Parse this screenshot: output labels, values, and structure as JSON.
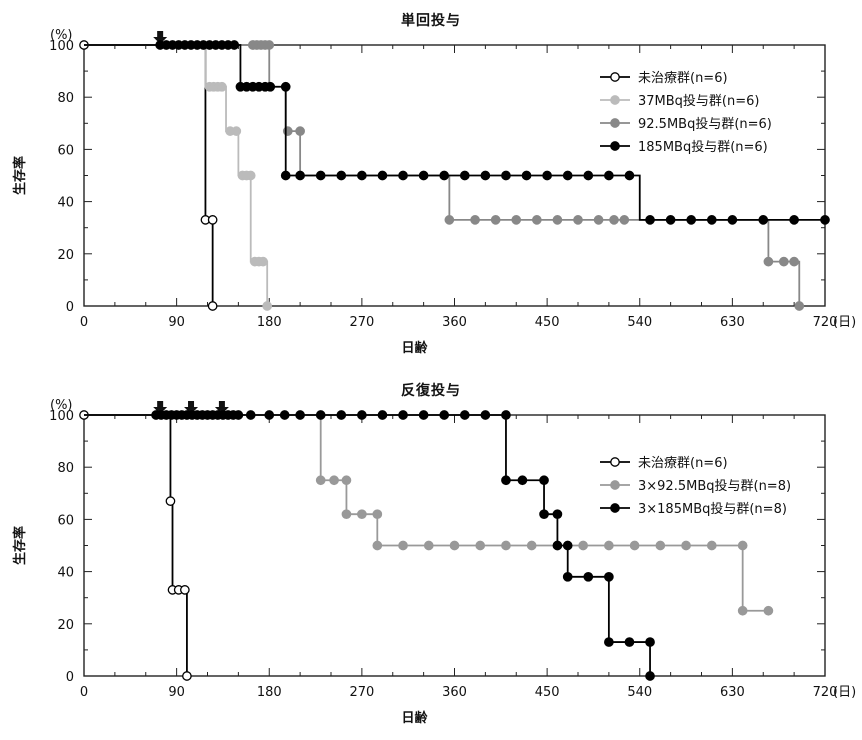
{
  "chart_data": [
    {
      "type": "line",
      "title": "単回投与",
      "xlabel": "日齢",
      "ylabel": "生存率",
      "y_unit": "(%)",
      "x_unit": "(日)",
      "xlim": [
        0,
        720
      ],
      "ylim": [
        0,
        100
      ],
      "x_ticks": [
        0,
        90,
        180,
        270,
        360,
        450,
        540,
        630,
        720
      ],
      "y_ticks": [
        0,
        20,
        40,
        60,
        80,
        100
      ],
      "dosing_arrows_x": [
        74
      ],
      "legend_position": "top-right",
      "series": [
        {
          "name": "未治療群(n=6)",
          "color": "#000000",
          "marker": "open",
          "steps": [
            [
              0,
              100
            ],
            [
              118,
              100
            ],
            [
              118,
              33
            ],
            [
              125,
              33
            ],
            [
              125,
              0
            ]
          ],
          "markers": [
            [
              0,
              100
            ],
            [
              118,
              33
            ],
            [
              125,
              33
            ],
            [
              125,
              0
            ]
          ]
        },
        {
          "name": "37MBq投与群(n=6)",
          "color": "#bbbbbb",
          "marker": "filled",
          "steps": [
            [
              0,
              100
            ],
            [
              118,
              100
            ],
            [
              118,
              84
            ],
            [
              138,
              84
            ],
            [
              138,
              67
            ],
            [
              150,
              67
            ],
            [
              150,
              50
            ],
            [
              162,
              50
            ],
            [
              162,
              17
            ],
            [
              178,
              17
            ],
            [
              178,
              0
            ]
          ],
          "markers": [
            [
              122,
              84
            ],
            [
              126,
              84
            ],
            [
              130,
              84
            ],
            [
              134,
              84
            ],
            [
              142,
              67
            ],
            [
              148,
              67
            ],
            [
              154,
              50
            ],
            [
              158,
              50
            ],
            [
              162,
              50
            ],
            [
              166,
              17
            ],
            [
              170,
              17
            ],
            [
              174,
              17
            ],
            [
              178,
              0
            ]
          ]
        },
        {
          "name": "92.5MBq投与群(n=6)",
          "color": "#888888",
          "marker": "filled",
          "steps": [
            [
              0,
              100
            ],
            [
              180,
              100
            ],
            [
              180,
              84
            ],
            [
              196,
              84
            ],
            [
              196,
              67
            ],
            [
              210,
              67
            ],
            [
              210,
              50
            ],
            [
              355,
              50
            ],
            [
              355,
              33
            ],
            [
              665,
              33
            ],
            [
              665,
              17
            ],
            [
              695,
              17
            ],
            [
              695,
              0
            ]
          ],
          "markers": [
            [
              164,
              100
            ],
            [
              168,
              100
            ],
            [
              172,
              100
            ],
            [
              176,
              100
            ],
            [
              180,
              100
            ],
            [
              198,
              67
            ],
            [
              210,
              67
            ],
            [
              355,
              33
            ],
            [
              380,
              33
            ],
            [
              400,
              33
            ],
            [
              420,
              33
            ],
            [
              440,
              33
            ],
            [
              460,
              33
            ],
            [
              480,
              33
            ],
            [
              500,
              33
            ],
            [
              515,
              33
            ],
            [
              525,
              33
            ],
            [
              665,
              17
            ],
            [
              680,
              17
            ],
            [
              690,
              17
            ],
            [
              695,
              0
            ]
          ]
        },
        {
          "name": "185MBq投与群(n=6)",
          "color": "#000000",
          "marker": "filled",
          "steps": [
            [
              0,
              100
            ],
            [
              152,
              100
            ],
            [
              152,
              84
            ],
            [
              196,
              84
            ],
            [
              196,
              50
            ],
            [
              540,
              50
            ],
            [
              540,
              33
            ],
            [
              720,
              33
            ]
          ],
          "markers": [
            [
              74,
              100
            ],
            [
              80,
              100
            ],
            [
              86,
              100
            ],
            [
              92,
              100
            ],
            [
              98,
              100
            ],
            [
              104,
              100
            ],
            [
              110,
              100
            ],
            [
              116,
              100
            ],
            [
              122,
              100
            ],
            [
              128,
              100
            ],
            [
              134,
              100
            ],
            [
              140,
              100
            ],
            [
              146,
              100
            ],
            [
              152,
              84
            ],
            [
              158,
              84
            ],
            [
              164,
              84
            ],
            [
              170,
              84
            ],
            [
              176,
              84
            ],
            [
              181,
              84
            ],
            [
              196,
              84
            ],
            [
              196,
              50
            ],
            [
              210,
              50
            ],
            [
              230,
              50
            ],
            [
              250,
              50
            ],
            [
              270,
              50
            ],
            [
              290,
              50
            ],
            [
              310,
              50
            ],
            [
              330,
              50
            ],
            [
              350,
              50
            ],
            [
              370,
              50
            ],
            [
              390,
              50
            ],
            [
              410,
              50
            ],
            [
              430,
              50
            ],
            [
              450,
              50
            ],
            [
              470,
              50
            ],
            [
              490,
              50
            ],
            [
              510,
              50
            ],
            [
              530,
              50
            ],
            [
              550,
              33
            ],
            [
              570,
              33
            ],
            [
              590,
              33
            ],
            [
              610,
              33
            ],
            [
              630,
              33
            ],
            [
              660,
              33
            ],
            [
              690,
              33
            ],
            [
              720,
              33
            ]
          ]
        }
      ],
      "legend": [
        {
          "label": "未治療群(n=6)",
          "color": "#000000",
          "marker": "open"
        },
        {
          "label": "37MBq投与群(n=6)",
          "color": "#bbbbbb",
          "marker": "filled"
        },
        {
          "label": "92.5MBq投与群(n=6)",
          "color": "#888888",
          "marker": "filled"
        },
        {
          "label": "185MBq投与群(n=6)",
          "color": "#000000",
          "marker": "filled"
        }
      ]
    },
    {
      "type": "line",
      "title": "反復投与",
      "xlabel": "日齢",
      "ylabel": "生存率",
      "y_unit": "(%)",
      "x_unit": "(日)",
      "xlim": [
        0,
        720
      ],
      "ylim": [
        0,
        100
      ],
      "x_ticks": [
        0,
        90,
        180,
        270,
        360,
        450,
        540,
        630,
        720
      ],
      "y_ticks": [
        0,
        20,
        40,
        60,
        80,
        100
      ],
      "dosing_arrows_x": [
        74,
        104,
        134
      ],
      "legend_position": "top-right",
      "series": [
        {
          "name": "未治療群(n=6)",
          "color": "#000000",
          "marker": "open",
          "steps": [
            [
              0,
              100
            ],
            [
              84,
              100
            ],
            [
              84,
              67
            ],
            [
              86,
              67
            ],
            [
              86,
              33
            ],
            [
              100,
              33
            ],
            [
              100,
              0
            ]
          ],
          "markers": [
            [
              0,
              100
            ],
            [
              84,
              67
            ],
            [
              86,
              33
            ],
            [
              92,
              33
            ],
            [
              98,
              33
            ],
            [
              100,
              0
            ]
          ]
        },
        {
          "name": "3×92.5MBq投与群(n=8)",
          "color": "#999999",
          "marker": "filled",
          "steps": [
            [
              0,
              100
            ],
            [
              230,
              100
            ],
            [
              230,
              75
            ],
            [
              255,
              75
            ],
            [
              255,
              62
            ],
            [
              285,
              62
            ],
            [
              285,
              50
            ],
            [
              640,
              50
            ],
            [
              640,
              25
            ],
            [
              665,
              25
            ]
          ],
          "markers": [
            [
              230,
              75
            ],
            [
              243,
              75
            ],
            [
              255,
              75
            ],
            [
              255,
              62
            ],
            [
              270,
              62
            ],
            [
              285,
              62
            ],
            [
              285,
              50
            ],
            [
              310,
              50
            ],
            [
              335,
              50
            ],
            [
              360,
              50
            ],
            [
              385,
              50
            ],
            [
              410,
              50
            ],
            [
              435,
              50
            ],
            [
              460,
              50
            ],
            [
              485,
              50
            ],
            [
              510,
              50
            ],
            [
              535,
              50
            ],
            [
              560,
              50
            ],
            [
              585,
              50
            ],
            [
              610,
              50
            ],
            [
              640,
              50
            ],
            [
              640,
              25
            ],
            [
              665,
              25
            ]
          ]
        },
        {
          "name": "3×185MBq投与群(n=8)",
          "color": "#000000",
          "marker": "filled",
          "steps": [
            [
              0,
              100
            ],
            [
              410,
              100
            ],
            [
              410,
              75
            ],
            [
              447,
              75
            ],
            [
              447,
              62
            ],
            [
              460,
              62
            ],
            [
              460,
              50
            ],
            [
              470,
              50
            ],
            [
              470,
              38
            ],
            [
              510,
              38
            ],
            [
              510,
              13
            ],
            [
              550,
              13
            ],
            [
              550,
              0
            ]
          ],
          "markers": [
            [
              70,
              100
            ],
            [
              75,
              100
            ],
            [
              80,
              100
            ],
            [
              85,
              100
            ],
            [
              90,
              100
            ],
            [
              95,
              100
            ],
            [
              100,
              100
            ],
            [
              105,
              100
            ],
            [
              110,
              100
            ],
            [
              115,
              100
            ],
            [
              120,
              100
            ],
            [
              125,
              100
            ],
            [
              130,
              100
            ],
            [
              135,
              100
            ],
            [
              140,
              100
            ],
            [
              145,
              100
            ],
            [
              150,
              100
            ],
            [
              162,
              100
            ],
            [
              180,
              100
            ],
            [
              195,
              100
            ],
            [
              210,
              100
            ],
            [
              230,
              100
            ],
            [
              250,
              100
            ],
            [
              270,
              100
            ],
            [
              290,
              100
            ],
            [
              310,
              100
            ],
            [
              330,
              100
            ],
            [
              350,
              100
            ],
            [
              370,
              100
            ],
            [
              390,
              100
            ],
            [
              410,
              100
            ],
            [
              410,
              75
            ],
            [
              426,
              75
            ],
            [
              447,
              75
            ],
            [
              447,
              62
            ],
            [
              460,
              62
            ],
            [
              460,
              50
            ],
            [
              470,
              50
            ],
            [
              470,
              38
            ],
            [
              490,
              38
            ],
            [
              510,
              38
            ],
            [
              510,
              13
            ],
            [
              530,
              13
            ],
            [
              550,
              13
            ],
            [
              550,
              0
            ]
          ]
        }
      ],
      "legend": [
        {
          "label": "未治療群(n=6)",
          "color": "#000000",
          "marker": "open"
        },
        {
          "label": "3×92.5MBq投与群(n=8)",
          "color": "#999999",
          "marker": "filled"
        },
        {
          "label": "3×185MBq投与群(n=8)",
          "color": "#000000",
          "marker": "filled"
        }
      ]
    }
  ]
}
